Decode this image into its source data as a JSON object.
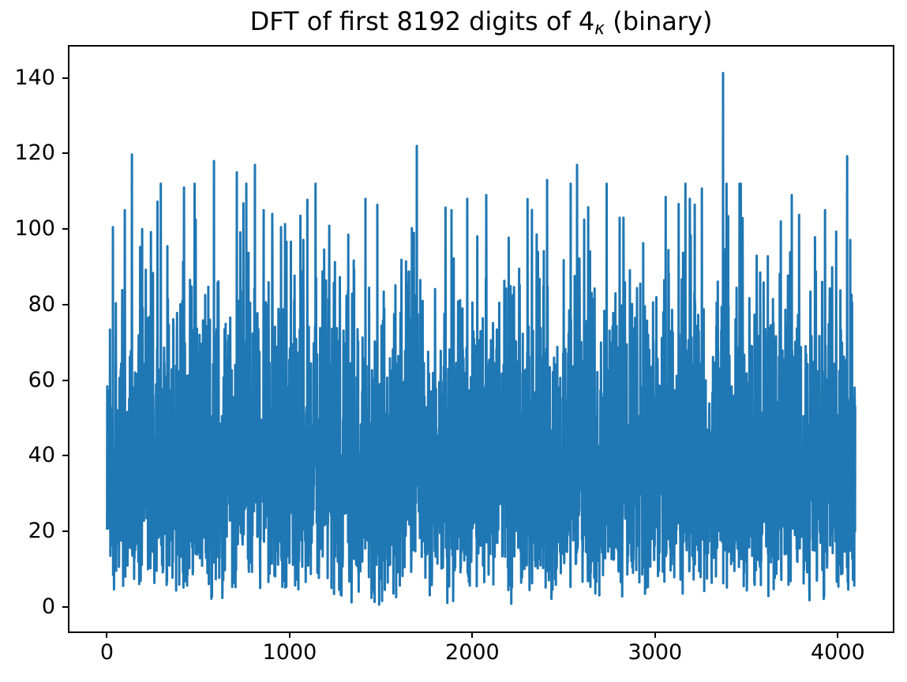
{
  "chart_data": {
    "type": "line",
    "title": "DFT of first 8192 digits of 4κ (binary)",
    "title_parts": {
      "prefix": "DFT of first 8192 digits of 4",
      "subscript": "κ",
      "suffix": " (binary)"
    },
    "xlabel": "",
    "ylabel": "",
    "x_ticks": [
      0,
      1000,
      2000,
      3000,
      4000
    ],
    "y_ticks": [
      0,
      20,
      40,
      60,
      80,
      100,
      120,
      140
    ],
    "xlim": [
      -204.8,
      4300.8
    ],
    "ylim": [
      -6.5,
      148.3
    ],
    "x_range_data": [
      0,
      4095
    ],
    "n_points": 4096,
    "line_color": "#1f77b4",
    "axis_color": "#000000",
    "background_color": "#ffffff",
    "grid": false,
    "legend": null,
    "series_description": "Dense noisy DFT magnitude spectrum of a binary digit sequence; per-bin magnitudes approximately Rayleigh-distributed (sigma ~ 32), solid band roughly 15-65, frequent excursions 80-100, global max ~141",
    "generator": {
      "kind": "rayleigh",
      "sigma": 32,
      "seed": 1337,
      "clamp_min": 0.6,
      "clamp_max": 112
    },
    "notable_peaks": [
      [
        33,
        100.5
      ],
      [
        98,
        105
      ],
      [
        137,
        119.7
      ],
      [
        193,
        100
      ],
      [
        422,
        111
      ],
      [
        486,
        102.5
      ],
      [
        586,
        118
      ],
      [
        711,
        115
      ],
      [
        810,
        117
      ],
      [
        858,
        105
      ],
      [
        905,
        104
      ],
      [
        953,
        100.5
      ],
      [
        1321,
        98.5
      ],
      [
        1415,
        108
      ],
      [
        1696,
        122
      ],
      [
        1886,
        105
      ],
      [
        1972,
        108
      ],
      [
        2076,
        109
      ],
      [
        2409,
        113
      ],
      [
        2573,
        117
      ],
      [
        2612,
        102.5
      ],
      [
        2827,
        103
      ],
      [
        3058,
        108.5
      ],
      [
        3190,
        108
      ],
      [
        3372,
        141.3
      ],
      [
        3400,
        103.4
      ],
      [
        3748,
        109
      ],
      [
        3930,
        105
      ],
      [
        4051,
        119.3
      ]
    ],
    "y_max_observed": 141.3,
    "y_min_observed": 0.6
  }
}
